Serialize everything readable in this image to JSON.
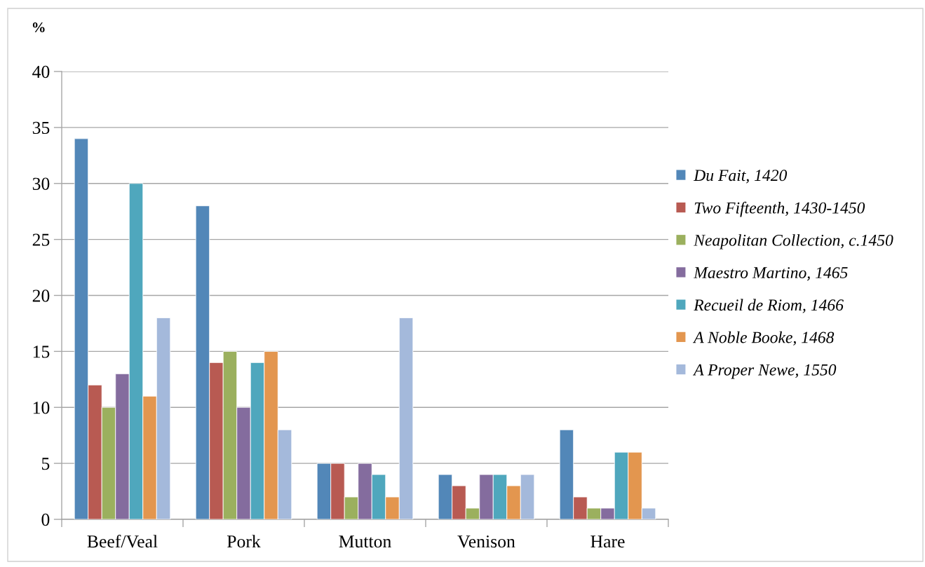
{
  "chart_data": {
    "type": "bar",
    "ylabel": "%",
    "categories": [
      "Beef/Veal",
      "Pork",
      "Mutton",
      "Venison",
      "Hare"
    ],
    "series": [
      {
        "name": "Du Fait, 1420",
        "color": "#5287b8",
        "values": [
          34,
          28,
          5,
          4,
          8
        ]
      },
      {
        "name": "Two Fifteenth, 1430-1450",
        "color": "#b85a52",
        "values": [
          12,
          14,
          5,
          3,
          2
        ]
      },
      {
        "name": "Neapolitan Collection, c.1450",
        "color": "#9bb05e",
        "values": [
          10,
          15,
          2,
          1,
          1
        ]
      },
      {
        "name": "Maestro Martino, 1465",
        "color": "#846c9e",
        "values": [
          13,
          10,
          5,
          4,
          1
        ]
      },
      {
        "name": "Recueil de Riom, 1466",
        "color": "#4fa7bd",
        "values": [
          30,
          14,
          4,
          4,
          6
        ]
      },
      {
        "name": "A Noble Booke, 1468",
        "color": "#e3964f",
        "values": [
          11,
          15,
          2,
          3,
          6
        ]
      },
      {
        "name": "A Proper Newe, 1550",
        "color": "#a4b9db",
        "values": [
          18,
          8,
          18,
          4,
          1
        ]
      }
    ],
    "ylim": [
      0,
      40
    ],
    "yticks": [
      0,
      5,
      10,
      15,
      20,
      25,
      30,
      35,
      40
    ],
    "grid": "y",
    "legend": "right"
  }
}
